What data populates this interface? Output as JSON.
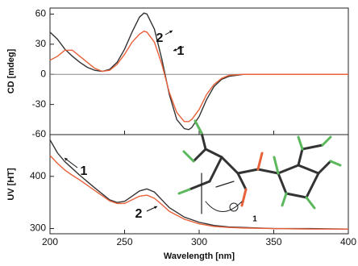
{
  "chart_data": [
    {
      "type": "line",
      "ylabel": "CD [mdeg]",
      "x": [
        200,
        205,
        210,
        215,
        220,
        225,
        230,
        235,
        240,
        245,
        250,
        255,
        260,
        263,
        265,
        270,
        275,
        280,
        285,
        290,
        293,
        295,
        300,
        305,
        310,
        315,
        320,
        330,
        340,
        350,
        400
      ],
      "series": [
        {
          "name": "1",
          "color": "#333333",
          "values": [
            42,
            35,
            25,
            18,
            12,
            7,
            4,
            3,
            5,
            12,
            25,
            42,
            57,
            61,
            60,
            45,
            15,
            -20,
            -45,
            -54,
            -55,
            -53,
            -42,
            -25,
            -12,
            -5,
            -2,
            0,
            0,
            0,
            0
          ]
        },
        {
          "name": "2",
          "color": "#e8613a",
          "values": [
            14,
            18,
            24,
            24,
            18,
            12,
            6,
            3,
            4,
            10,
            20,
            32,
            40,
            43,
            42,
            32,
            10,
            -18,
            -38,
            -47,
            -47,
            -45,
            -35,
            -20,
            -10,
            -4,
            -1,
            0,
            0,
            0,
            0
          ]
        }
      ],
      "xlim": [
        200,
        400
      ],
      "xticks": [
        200,
        250,
        300,
        350,
        400
      ],
      "ylim": [
        -60,
        66
      ],
      "yticks": [
        60,
        30,
        0,
        -30,
        -60
      ],
      "annotations": [
        "2",
        "1"
      ]
    },
    {
      "type": "line",
      "ylabel": "UV [HT]",
      "xlabel": "Wavelength [nm]",
      "x": [
        200,
        205,
        210,
        215,
        220,
        230,
        240,
        245,
        250,
        255,
        260,
        265,
        270,
        275,
        280,
        290,
        300,
        310,
        320,
        330,
        350,
        375,
        400
      ],
      "series": [
        {
          "name": "1",
          "color": "#333333",
          "values": [
            470,
            445,
            428,
            415,
            402,
            378,
            355,
            350,
            352,
            362,
            372,
            376,
            370,
            355,
            340,
            322,
            312,
            306,
            303,
            302,
            300,
            300,
            299
          ]
        },
        {
          "name": "2",
          "color": "#e8613a",
          "values": [
            440,
            425,
            412,
            402,
            393,
            373,
            353,
            348,
            348,
            355,
            362,
            364,
            358,
            346,
            333,
            318,
            309,
            304,
            302,
            301,
            300,
            299,
            299
          ]
        }
      ],
      "xlim": [
        200,
        400
      ],
      "xticks": [
        200,
        250,
        300,
        350,
        400
      ],
      "ylim": [
        290,
        480
      ],
      "yticks": [
        300,
        400
      ],
      "annotations": [
        "1",
        "2",
        "1"
      ]
    }
  ]
}
